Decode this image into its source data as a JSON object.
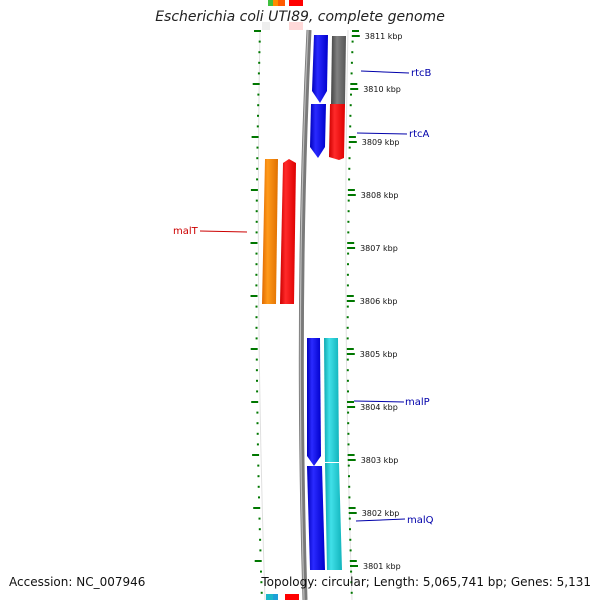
{
  "map": {
    "title": "Escherichia coli UTI89, complete genome",
    "accession": "Accession: NC_007946",
    "summary": "Topology: circular; Length: 5,065,741 bp; Genes: 5,131",
    "colors": {
      "forward": "#0000ee",
      "reverse": "#ff0000",
      "transcriptional_regulator": "#ff8c00",
      "hypothetical": "#666666",
      "cyan": "#1cc8d0",
      "tick": "#007700",
      "backbone": "#888888",
      "label_left": "#cc0000",
      "label_right": "#0000aa"
    }
  },
  "ticks": [
    {
      "label": "3811 kbp"
    },
    {
      "label": "3810 kbp"
    },
    {
      "label": "3809 kbp"
    },
    {
      "label": "3808 kbp"
    },
    {
      "label": "3807 kbp"
    },
    {
      "label": "3806 kbp"
    },
    {
      "label": "3805 kbp"
    },
    {
      "label": "3804 kbp"
    },
    {
      "label": "3803 kbp"
    },
    {
      "label": "3802 kbp"
    },
    {
      "label": "3801 kbp"
    }
  ],
  "genes": [
    {
      "name": "rtcB"
    },
    {
      "name": "rtcA"
    },
    {
      "name": "malT"
    },
    {
      "name": "malP"
    },
    {
      "name": "malQ"
    }
  ]
}
